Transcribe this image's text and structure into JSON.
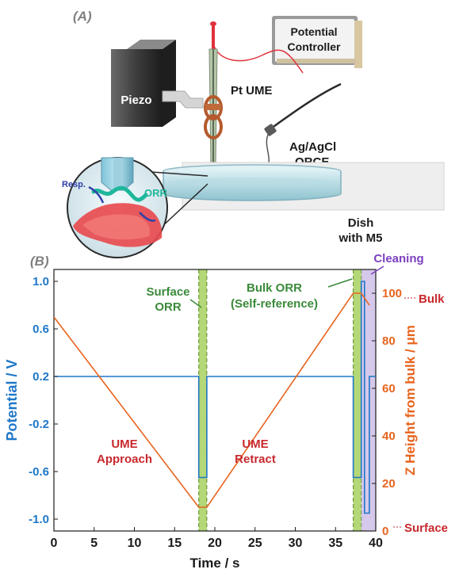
{
  "panel_a": {
    "label": "(A)",
    "controller": [
      "Potential",
      "Controller"
    ],
    "piezo": "Piezo",
    "pt_ume": "Pt UME",
    "reference": [
      "Ag/AgCl",
      "QRCE"
    ],
    "dish": [
      "Dish",
      "with M5"
    ],
    "resp": "Resp.",
    "orr": "ORR"
  },
  "panel_b": {
    "label": "(B)",
    "annot_surface_orr": [
      "Surface",
      "ORR"
    ],
    "annot_bulk_orr": [
      "Bulk ORR",
      "(Self-reference)"
    ],
    "annot_cleaning": "Cleaning",
    "annot_approach": [
      "UME",
      "Approach"
    ],
    "annot_retract": [
      "UME",
      "Retract"
    ],
    "right_bulk": "Bulk",
    "right_surface": "Surface",
    "colors": {
      "potential": "#1f77c8",
      "height": "#e8641e",
      "orr_band": "#9bc94a",
      "cleaning_band": "#b49ad8",
      "annotation": "#c8282d",
      "green_text": "#3a8a3a",
      "purple_text": "#7b3fc0"
    }
  },
  "chart_data": {
    "type": "line",
    "xlabel": "Time / s",
    "ylabel_left": "Potential / V",
    "ylabel_right": "Z Height from bulk / μm",
    "xlim": [
      0,
      40
    ],
    "ylim_left": [
      -1.1,
      1.1
    ],
    "ylim_right": [
      0,
      110
    ],
    "x_ticks": [
      "0",
      "5",
      "10",
      "15",
      "20",
      "25",
      "30",
      "35",
      "40"
    ],
    "y_left_ticks": [
      "1.0",
      "0.6",
      "0.2",
      "-0.2",
      "-0.6",
      "-1.0"
    ],
    "y_right_ticks": [
      "0",
      "20",
      "40",
      "60",
      "80",
      "100"
    ],
    "series": [
      {
        "axis": "left",
        "x": [
          0,
          18,
          18,
          19,
          19,
          37.2,
          37.2,
          38.2,
          38.2,
          38.6,
          38.6,
          39.2,
          39.2,
          40
        ],
        "y": [
          0.2,
          0.2,
          -0.65,
          -0.65,
          0.2,
          0.2,
          -0.65,
          -0.65,
          1.0,
          1.0,
          -0.95,
          -0.95,
          0.2,
          0.2
        ]
      },
      {
        "axis": "right",
        "x": [
          0,
          18,
          19,
          37.2,
          38.2,
          39.2
        ],
        "y": [
          90,
          10,
          10,
          100,
          100,
          95
        ]
      }
    ],
    "bands": [
      {
        "name": "surface-orr",
        "x": [
          18,
          19
        ]
      },
      {
        "name": "bulk-orr",
        "x": [
          37.2,
          38.2
        ]
      },
      {
        "name": "cleaning",
        "x": [
          38.2,
          40
        ]
      }
    ]
  }
}
